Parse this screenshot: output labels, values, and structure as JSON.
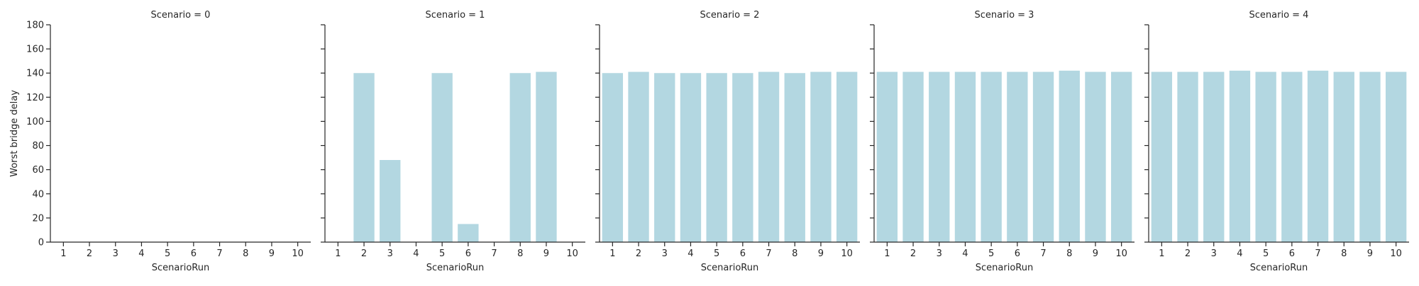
{
  "chart_data": {
    "type": "bar",
    "layout": "facet-grid",
    "ylabel": "Worst bridge delay",
    "ylim": [
      0,
      180
    ],
    "yticks": [
      0,
      20,
      40,
      60,
      80,
      100,
      120,
      140,
      160,
      180
    ],
    "categories": [
      "1",
      "2",
      "3",
      "4",
      "5",
      "6",
      "7",
      "8",
      "9",
      "10"
    ],
    "bar_color": "#b3d7e1",
    "grid": false,
    "panels": [
      {
        "title": "Scenario = 0",
        "xlabel": "ScenarioRun",
        "values": [
          0,
          0,
          0,
          0,
          0,
          0,
          0,
          0,
          0,
          0
        ]
      },
      {
        "title": "Scenario = 1",
        "xlabel": "ScenarioRun",
        "values": [
          0,
          140,
          68,
          0,
          140,
          15,
          0,
          140,
          141,
          0
        ]
      },
      {
        "title": "Scenario = 2",
        "xlabel": "ScenarioRun",
        "values": [
          140,
          141,
          140,
          140,
          140,
          140,
          141,
          140,
          141,
          141
        ]
      },
      {
        "title": "Scenario = 3",
        "xlabel": "ScenarioRun",
        "values": [
          141,
          141,
          141,
          141,
          141,
          141,
          141,
          142,
          141,
          141
        ]
      },
      {
        "title": "Scenario = 4",
        "xlabel": "ScenarioRun",
        "values": [
          141,
          141,
          141,
          142,
          141,
          141,
          142,
          141,
          141,
          141
        ]
      }
    ]
  }
}
